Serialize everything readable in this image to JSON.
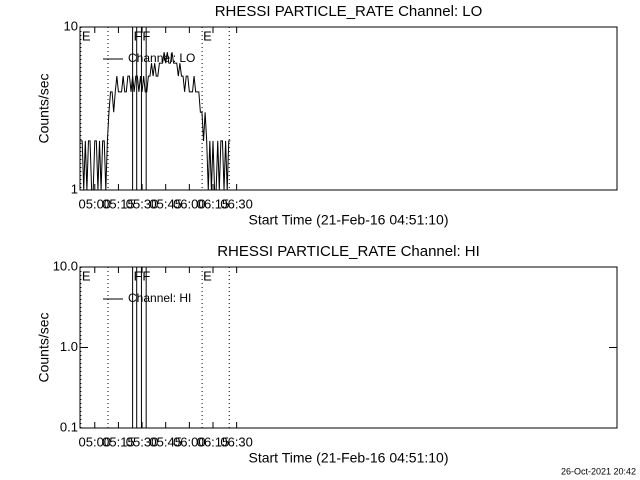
{
  "chart_data": [
    {
      "type": "line",
      "title": "RHESSI PARTICLE_RATE Channel: LO",
      "xlabel": "Start Time (21-Feb-16 04:51:10)",
      "ylabel": "Counts/sec",
      "x": [
        291,
        292,
        293,
        294,
        295,
        296,
        297,
        298,
        299,
        300,
        301,
        302,
        303,
        304,
        305,
        306,
        307,
        308,
        309,
        310,
        311,
        312,
        313,
        314,
        315,
        316,
        317,
        318,
        319,
        320,
        321,
        322,
        323,
        324,
        325,
        326,
        327,
        328,
        329,
        330,
        331,
        332,
        333,
        334,
        335,
        336,
        337,
        338,
        339,
        340,
        341,
        342,
        343,
        344,
        345,
        346,
        347,
        348,
        349,
        350,
        351,
        352,
        353,
        354,
        355,
        356,
        357,
        358,
        359,
        360,
        361,
        362,
        363,
        364,
        365,
        366,
        367,
        368,
        369,
        370,
        371,
        372,
        373,
        374,
        375,
        376,
        377,
        378,
        379,
        380,
        381,
        382,
        383,
        384,
        385,
        386
      ],
      "series": [
        {
          "name": "Channel: LO",
          "color": "#000000",
          "values": [
            2,
            2,
            1,
            2,
            1,
            2,
            2,
            1,
            1,
            2,
            2,
            1,
            2,
            1,
            2,
            2,
            1,
            2,
            3,
            4,
            4,
            3,
            4,
            5,
            4,
            4,
            4,
            5,
            4,
            4,
            5,
            5,
            4,
            5,
            4,
            5,
            5,
            4,
            5,
            4,
            5,
            4,
            4,
            5,
            5,
            6,
            5,
            6,
            5,
            5,
            6,
            6,
            6,
            7,
            6,
            7,
            6,
            6,
            7,
            6,
            6,
            6,
            5,
            6,
            5,
            5,
            4,
            5,
            5,
            4,
            4,
            4,
            5,
            4,
            4,
            4,
            3,
            3,
            2,
            3,
            2,
            1,
            2,
            1,
            2,
            1,
            1,
            2,
            1,
            2,
            2,
            1,
            2,
            1,
            2,
            2
          ]
        }
      ],
      "xlim": [
        290.625,
        631.3
      ],
      "xticks": [
        {
          "value": 300,
          "label": "05:00"
        },
        {
          "value": 315,
          "label": "05:15"
        },
        {
          "value": 330,
          "label": "05:30"
        },
        {
          "value": 345,
          "label": "05:45"
        },
        {
          "value": 360,
          "label": "06:00"
        },
        {
          "value": 375,
          "label": "06:15"
        },
        {
          "value": 390,
          "label": "06:30"
        }
      ],
      "ylim": [
        1,
        10
      ],
      "yticks": [
        1,
        10
      ],
      "ylog": true,
      "legend": "upper left",
      "markers": [
        {
          "x": 291.2,
          "style": "dotted",
          "label": "E"
        },
        {
          "x": 308.4,
          "style": "dotted"
        },
        {
          "x": 324.0,
          "style": "solid",
          "label": "F"
        },
        {
          "x": 326.6,
          "style": "solid"
        },
        {
          "x": 329.6,
          "style": "solid",
          "label": "F"
        },
        {
          "x": 332.6,
          "style": "solid"
        },
        {
          "x": 368.1,
          "style": "dotted",
          "label": "E"
        },
        {
          "x": 385.3,
          "style": "dotted"
        }
      ]
    },
    {
      "type": "line",
      "title": "RHESSI PARTICLE_RATE Channel: HI",
      "xlabel": "Start Time (21-Feb-16 04:51:10)",
      "ylabel": "Counts/sec",
      "x": [],
      "series": [
        {
          "name": "Channel: HI",
          "color": "#000000",
          "values": []
        }
      ],
      "xlim": [
        290.625,
        631.3
      ],
      "xticks": [
        {
          "value": 300,
          "label": "05:00"
        },
        {
          "value": 315,
          "label": "05:15"
        },
        {
          "value": 330,
          "label": "05:30"
        },
        {
          "value": 345,
          "label": "05:45"
        },
        {
          "value": 360,
          "label": "06:00"
        },
        {
          "value": 375,
          "label": "06:15"
        },
        {
          "value": 390,
          "label": "06:30"
        }
      ],
      "ylim": [
        0.1,
        10
      ],
      "yticks": [
        0.1,
        {
          "value": 1,
          "label": "1.0"
        },
        {
          "value": 10,
          "label": "10.0"
        }
      ],
      "ylog": true,
      "legend": "upper left",
      "markers": [
        {
          "x": 291.2,
          "style": "dotted",
          "label": "E"
        },
        {
          "x": 308.4,
          "style": "dotted"
        },
        {
          "x": 324.0,
          "style": "solid",
          "label": "F"
        },
        {
          "x": 326.6,
          "style": "solid"
        },
        {
          "x": 329.6,
          "style": "solid",
          "label": "F"
        },
        {
          "x": 332.6,
          "style": "solid"
        },
        {
          "x": 368.1,
          "style": "dotted",
          "label": "E"
        },
        {
          "x": 385.3,
          "style": "dotted"
        }
      ]
    }
  ],
  "timestamp": "26-Oct-2021 20:42"
}
